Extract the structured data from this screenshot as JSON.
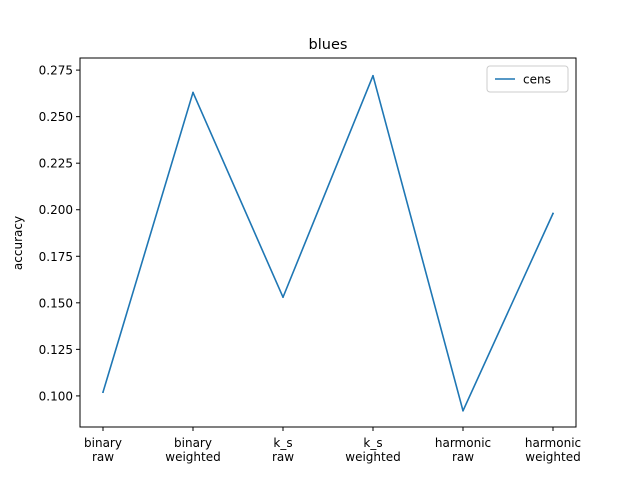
{
  "chart_data": {
    "type": "line",
    "title": "blues",
    "xlabel": "",
    "ylabel": "accuracy",
    "categories": [
      [
        "binary",
        "raw"
      ],
      [
        "binary",
        "weighted"
      ],
      [
        "k_s",
        "raw"
      ],
      [
        "k_s",
        "weighted"
      ],
      [
        "harmonic",
        "raw"
      ],
      [
        "harmonic",
        "weighted"
      ]
    ],
    "series": [
      {
        "name": "cens",
        "color": "#1f77b4",
        "values": [
          0.102,
          0.263,
          0.153,
          0.272,
          0.092,
          0.198
        ]
      }
    ],
    "ylim": [
      0.0833,
      0.2815
    ],
    "yticks": [
      0.1,
      0.125,
      0.15,
      0.175,
      0.2,
      0.225,
      0.25,
      0.275
    ],
    "ytick_labels": [
      "0.100",
      "0.125",
      "0.150",
      "0.175",
      "0.200",
      "0.225",
      "0.250",
      "0.275"
    ],
    "grid": false,
    "legend": "top-right"
  }
}
